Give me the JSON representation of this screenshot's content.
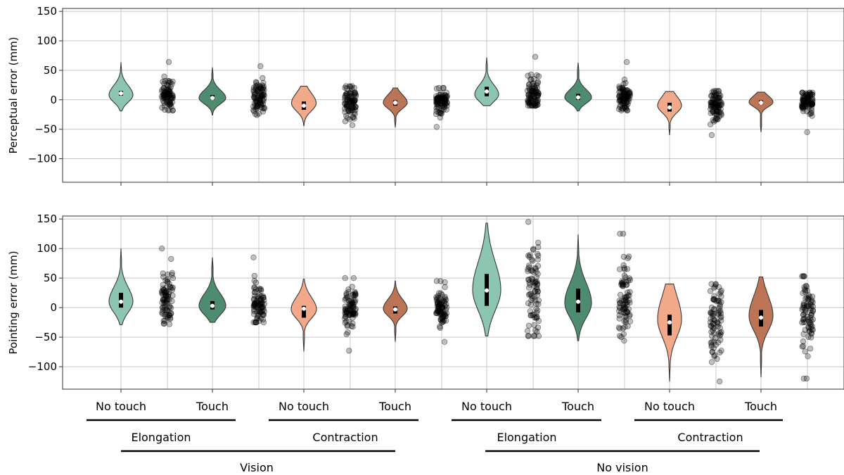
{
  "chart_data": [
    {
      "type": "violin",
      "ylabel": "Perceptual error (mm)",
      "ylim": [
        -140,
        155
      ],
      "yticks": [
        -100,
        -50,
        0,
        50,
        100,
        150
      ],
      "grid": true,
      "groups": [
        {
          "category": "No touch",
          "color": "#8cc5b0",
          "median": 11,
          "q1": 7,
          "q3": 15,
          "min": -19,
          "max": 63,
          "width": 34,
          "peak": 8,
          "spread": 12,
          "pts_lo": -18,
          "pts_hi": 64
        },
        {
          "category": "Touch",
          "color": "#4e8c70",
          "median": 3,
          "q1": 0,
          "q3": 8,
          "min": -26,
          "max": 55,
          "width": 38,
          "peak": 3,
          "spread": 10,
          "pts_lo": -26,
          "pts_hi": 57
        },
        {
          "category": "No touch",
          "color": "#f2a98a",
          "median": -10,
          "q1": -17,
          "q3": -3,
          "min": -44,
          "max": 23,
          "width": 35,
          "peak": -6,
          "spread": 13,
          "pts_lo": -43,
          "pts_hi": 23
        },
        {
          "category": "Touch",
          "color": "#bb7456",
          "median": -5,
          "q1": -10,
          "q3": -1,
          "min": -47,
          "max": 20,
          "width": 34,
          "peak": -5,
          "spread": 10,
          "pts_lo": -46,
          "pts_hi": 20
        },
        {
          "category": "No touch",
          "color": "#8cc5b0",
          "median": 14,
          "q1": 6,
          "q3": 22,
          "min": -10,
          "max": 72,
          "width": 34,
          "peak": 9,
          "spread": 12,
          "pts_lo": -10,
          "pts_hi": 73
        },
        {
          "category": "Touch",
          "color": "#4e8c70",
          "median": 4,
          "q1": 0,
          "q3": 10,
          "min": -19,
          "max": 63,
          "width": 38,
          "peak": 4,
          "spread": 10,
          "pts_lo": -18,
          "pts_hi": 64
        },
        {
          "category": "No touch",
          "color": "#f2a98a",
          "median": -13,
          "q1": -20,
          "q3": -5,
          "min": -60,
          "max": 14,
          "width": 34,
          "peak": -10,
          "spread": 12,
          "pts_lo": -60,
          "pts_hi": 15
        },
        {
          "category": "Touch",
          "color": "#bb7456",
          "median": -5,
          "q1": -8,
          "q3": -1,
          "min": -55,
          "max": 13,
          "width": 34,
          "peak": -4,
          "spread": 8,
          "pts_lo": -55,
          "pts_hi": 12
        }
      ]
    },
    {
      "type": "violin",
      "ylabel": "Pointing error (mm)",
      "ylim": [
        -138,
        155
      ],
      "yticks": [
        -100,
        -50,
        0,
        50,
        100,
        150
      ],
      "grid": true,
      "groups": [
        {
          "category": "No touch",
          "color": "#8cc5b0",
          "median": 10,
          "q1": 0,
          "q3": 25,
          "min": -29,
          "max": 100,
          "width": 34,
          "peak": 10,
          "spread": 18,
          "pts_lo": -28,
          "pts_hi": 100
        },
        {
          "category": "Touch",
          "color": "#4e8c70",
          "median": 3,
          "q1": -3,
          "q3": 11,
          "min": -25,
          "max": 85,
          "width": 38,
          "peak": 3,
          "spread": 15,
          "pts_lo": -25,
          "pts_hi": 85
        },
        {
          "category": "No touch",
          "color": "#f2a98a",
          "median": -2,
          "q1": -17,
          "q3": 3,
          "min": -74,
          "max": 48,
          "width": 36,
          "peak": -3,
          "spread": 15,
          "pts_lo": -73,
          "pts_hi": 50
        },
        {
          "category": "Touch",
          "color": "#bb7456",
          "median": -3,
          "q1": -10,
          "q3": 2,
          "min": -58,
          "max": 45,
          "width": 34,
          "peak": -2,
          "spread": 12,
          "pts_lo": -58,
          "pts_hi": 45
        },
        {
          "category": "No touch",
          "color": "#8cc5b0",
          "median": 29,
          "q1": 3,
          "q3": 57,
          "min": -48,
          "max": 143,
          "width": 40,
          "peak": 30,
          "spread": 35,
          "pts_lo": -48,
          "pts_hi": 145
        },
        {
          "category": "Touch",
          "color": "#4e8c70",
          "median": 10,
          "q1": -8,
          "q3": 32,
          "min": -56,
          "max": 123,
          "width": 38,
          "peak": 8,
          "spread": 25,
          "pts_lo": -56,
          "pts_hi": 125
        },
        {
          "category": "No touch",
          "color": "#f2a98a",
          "median": -25,
          "q1": -47,
          "q3": -12,
          "min": -125,
          "max": 40,
          "width": 34,
          "peak": -20,
          "spread": 30,
          "pts_lo": -125,
          "pts_hi": 40
        },
        {
          "category": "Touch",
          "color": "#bb7456",
          "median": -17,
          "q1": -32,
          "q3": -4,
          "min": -118,
          "max": 52,
          "width": 34,
          "peak": -14,
          "spread": 25,
          "pts_lo": -120,
          "pts_hi": 53
        }
      ]
    }
  ],
  "group_labels": {
    "conditions": [
      "No touch",
      "Touch",
      "No touch",
      "Touch",
      "No touch",
      "Touch",
      "No touch",
      "Touch"
    ],
    "movements": [
      "Elongation",
      "Contraction",
      "Elongation",
      "Contraction"
    ],
    "visions": [
      "Vision",
      "No vision"
    ]
  }
}
